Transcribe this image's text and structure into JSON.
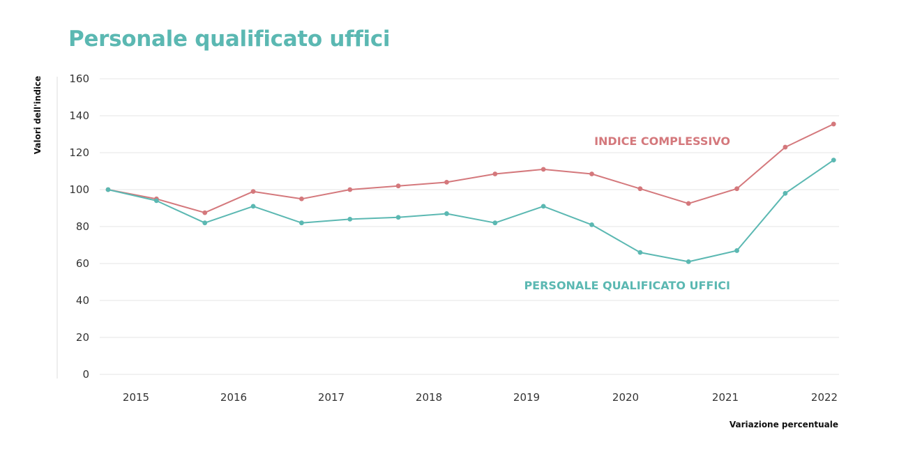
{
  "title": "Personale qualificato uffici",
  "colors": {
    "title": "#5bb8b2",
    "grid": "#e6e6e6",
    "axis": "#dddddd"
  },
  "chart_data": {
    "type": "line",
    "title": "Personale qualificato uffici",
    "ylabel": "Valori dell'indice",
    "xlabel": "Variazione percentuale",
    "ylim": [
      0,
      160
    ],
    "yticks": [
      0,
      20,
      40,
      60,
      80,
      100,
      120,
      140,
      160
    ],
    "grid": true,
    "xticks": [
      "2015",
      "2016",
      "2017",
      "2018",
      "2019",
      "2020",
      "2021",
      "2022"
    ],
    "x": [
      0,
      0.5,
      1,
      1.5,
      2,
      2.5,
      3,
      3.5,
      4,
      4.5,
      5,
      5.5,
      6,
      6.5,
      7,
      7.5
    ],
    "series": [
      {
        "name": "INDICE COMPLESSIVO",
        "color": "#d4787c",
        "values": [
          100,
          95,
          87.5,
          99,
          95,
          100,
          102,
          104,
          108.5,
          111,
          108.5,
          100.5,
          92.5,
          100.5,
          123,
          135.5
        ]
      },
      {
        "name": "PERSONALE QUALIFICATO UFFICI",
        "color": "#5bb8b2",
        "values": [
          100,
          94,
          82,
          91,
          82,
          84,
          85,
          87,
          82,
          91,
          81,
          66,
          61,
          67,
          98,
          116
        ]
      }
    ]
  }
}
